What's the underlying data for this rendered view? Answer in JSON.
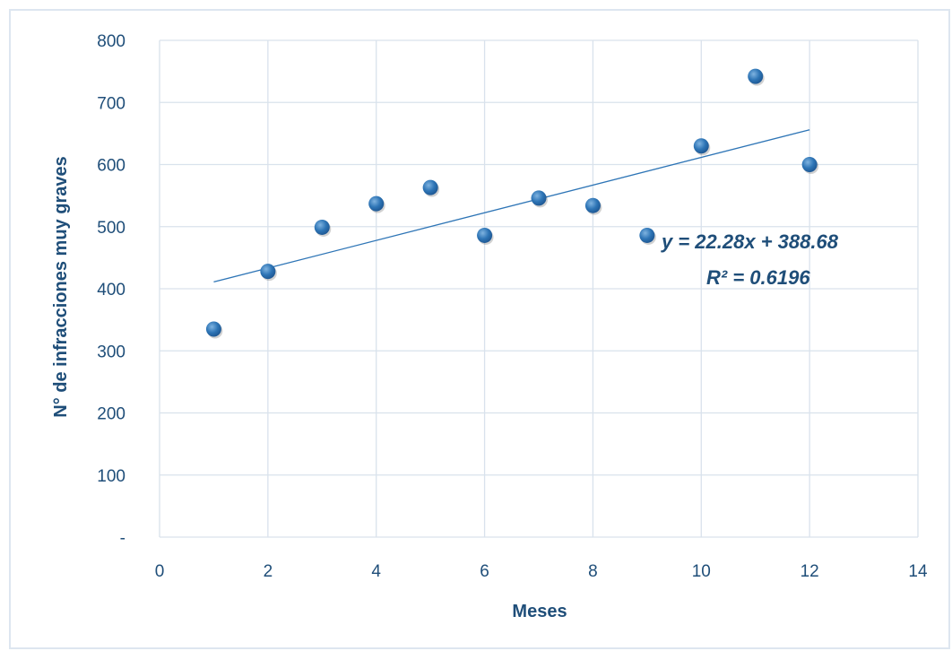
{
  "chart_data": {
    "type": "scatter",
    "title": "",
    "xlabel": "Meses",
    "ylabel": "N° de infracciones muy graves",
    "xlim": [
      0,
      14
    ],
    "ylim": [
      0,
      800
    ],
    "x_ticks": [
      0,
      2,
      4,
      6,
      8,
      10,
      12,
      14
    ],
    "x_tick_labels": [
      "0",
      "2",
      "4",
      "6",
      "8",
      "10",
      "12",
      "14"
    ],
    "y_ticks": [
      0,
      100,
      200,
      300,
      400,
      500,
      600,
      700,
      800
    ],
    "y_tick_labels": [
      "-",
      "100",
      "200",
      "300",
      "400",
      "500",
      "600",
      "700",
      "800"
    ],
    "grid": true,
    "legend": "none",
    "marker_color": "#2e75b6",
    "trendline_color": "#2e75b6",
    "series": [
      {
        "x": [
          1,
          2,
          3,
          4,
          5,
          6,
          7,
          8,
          9,
          10,
          11,
          12
        ],
        "y": [
          335,
          428,
          499,
          537,
          563,
          486,
          546,
          534,
          486,
          630,
          742,
          600
        ]
      }
    ],
    "trendline": {
      "slope": 22.28,
      "intercept": 388.68,
      "x_range": [
        1,
        12
      ],
      "equation_label": "y = 22.28x + 388.68",
      "r2_label": "R² = 0.6196"
    }
  }
}
